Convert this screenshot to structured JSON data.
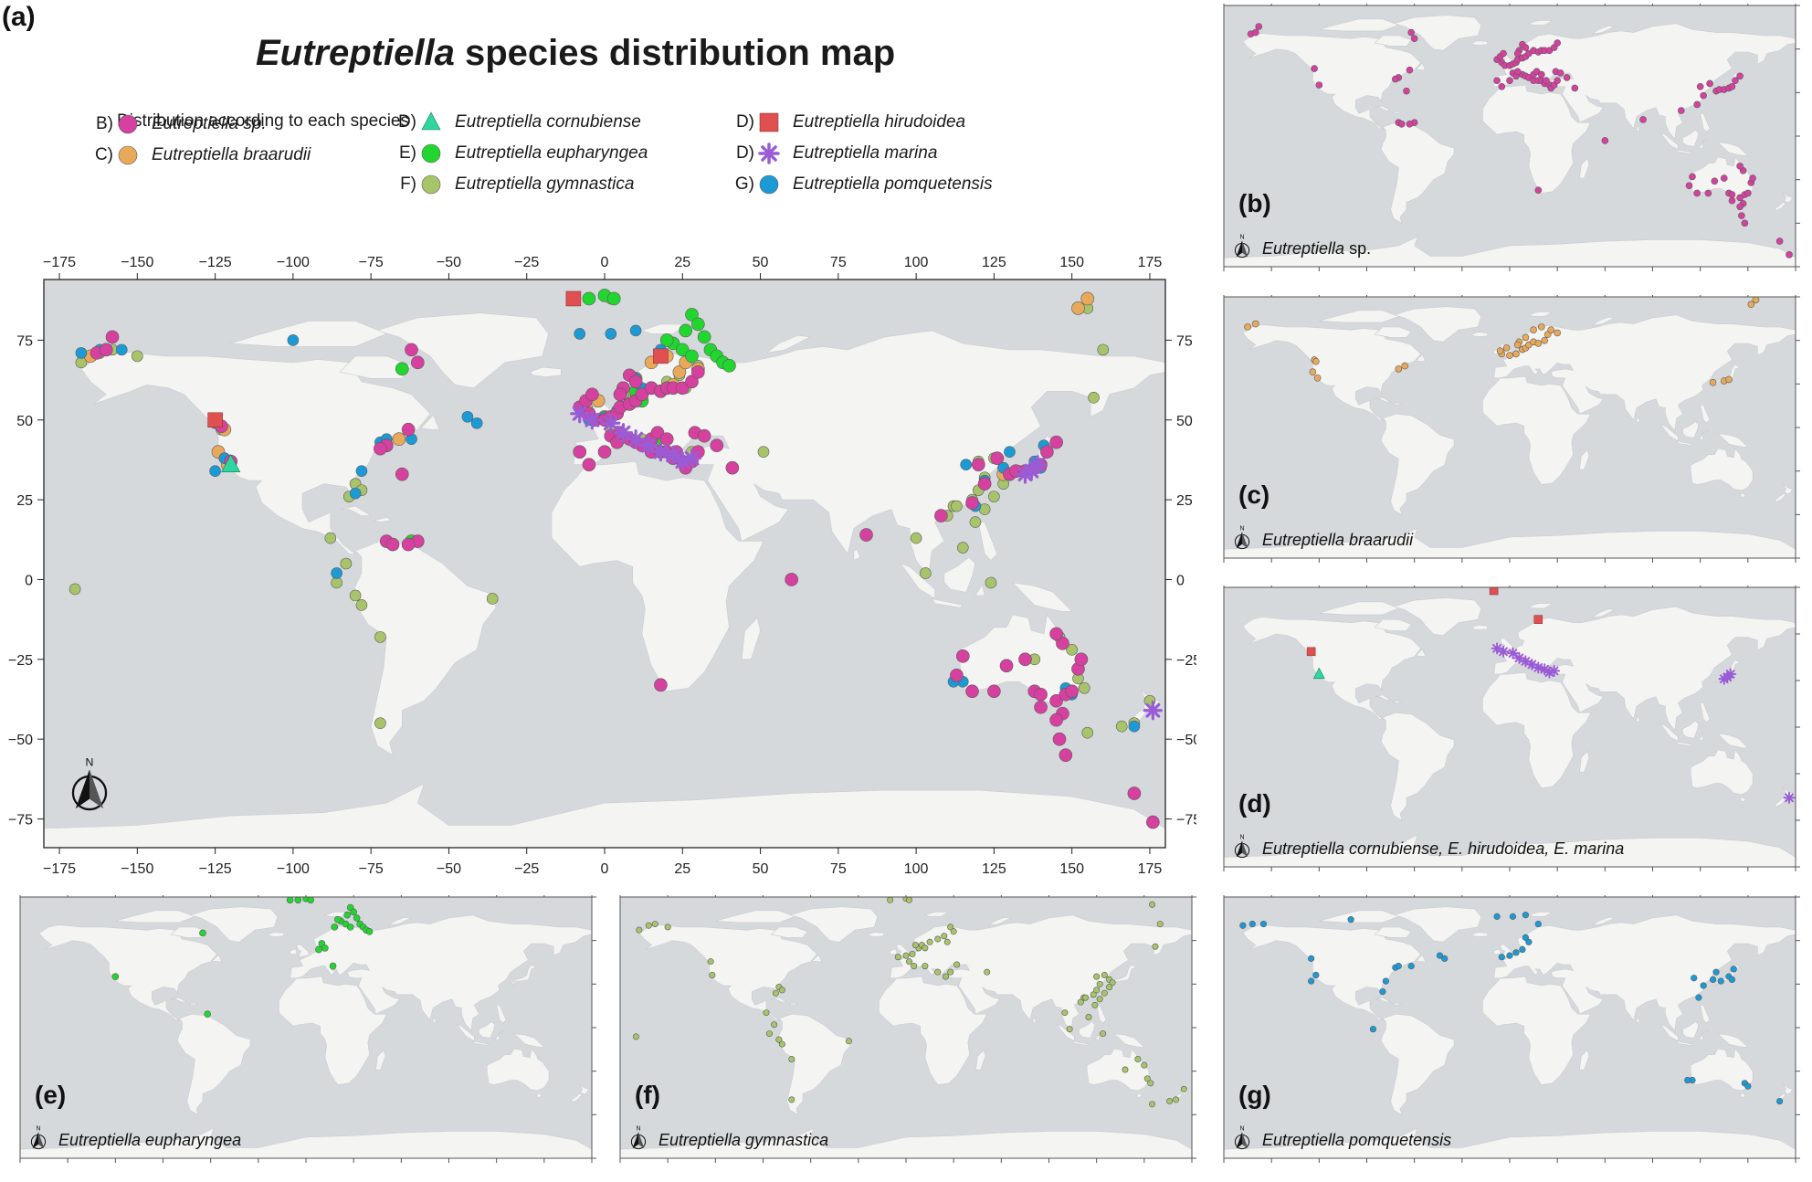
{
  "figure": {
    "label": "(a)",
    "title_italic": "Eutreptiella",
    "title_rest": " species distribution map"
  },
  "legend": {
    "heading": "Distribution according to each species",
    "items": [
      {
        "code": "B)",
        "name": "Eutreptiella sp.",
        "color": "#d6409f",
        "shape": "circle"
      },
      {
        "code": "C)",
        "name": "Eutreptiella braarudii",
        "color": "#e8a95b",
        "shape": "circle"
      },
      {
        "code": "D)",
        "name": "Eutreptiella cornubiense",
        "color": "#2fd6a0",
        "shape": "triangle"
      },
      {
        "code": "E)",
        "name": "Eutreptiella eupharyngea",
        "color": "#22d630",
        "shape": "circle"
      },
      {
        "code": "F)",
        "name": "Eutreptiella gymnastica",
        "color": "#a8c46a",
        "shape": "circle"
      },
      {
        "code": "D)",
        "name": "Eutreptiella hirudoidea",
        "color": "#e05050",
        "shape": "square"
      },
      {
        "code": "D)",
        "name": "Eutreptiella marina",
        "color": "#9a5cd6",
        "shape": "asterisk"
      },
      {
        "code": "G)",
        "name": "Eutreptiella pomquetensis",
        "color": "#1c9ad6",
        "shape": "circle"
      }
    ]
  },
  "map_a": {
    "lon_ticks": [
      "−175",
      "−150",
      "−125",
      "−100",
      "−75",
      "−50",
      "−25",
      "0",
      "25",
      "50",
      "75",
      "100",
      "125",
      "150",
      "175"
    ],
    "lat_ticks": [
      "75",
      "50",
      "25",
      "0",
      "−25",
      "−50",
      "−75"
    ],
    "colors": {
      "ocean": "#d5d9dc",
      "land": "#f4f4f2",
      "frame": "#444444"
    }
  },
  "small_panels": [
    {
      "id": "b",
      "letter": "(b)",
      "caption": "",
      "caption_italic": "Eutreptiella",
      "caption_plain": " sp."
    },
    {
      "id": "c",
      "letter": "(c)",
      "caption_italic": "Eutreptiella braarudii",
      "caption_plain": ""
    },
    {
      "id": "d",
      "letter": "(d)",
      "caption_italic": "Eutreptiella cornubiense, E. hirudoidea, E. marina",
      "caption_plain": ""
    },
    {
      "id": "e",
      "letter": "(e)",
      "caption_italic": "Eutreptiella eupharyngea",
      "caption_plain": ""
    },
    {
      "id": "f",
      "letter": "(f)",
      "caption_italic": "Eutreptiella gymnastica",
      "caption_plain": ""
    },
    {
      "id": "g",
      "letter": "(g)",
      "caption_italic": "Eutreptiella pomquetensis",
      "caption_plain": ""
    }
  ],
  "north_label": "N",
  "occurrences": {
    "sp": [
      [
        -163,
        71
      ],
      [
        -160,
        72
      ],
      [
        -158,
        76
      ],
      [
        -123,
        48
      ],
      [
        -120,
        37
      ],
      [
        -70,
        42
      ],
      [
        -72,
        41
      ],
      [
        -65,
        33
      ],
      [
        -60,
        12
      ],
      [
        -63,
        11
      ],
      [
        -70,
        12
      ],
      [
        -68,
        11
      ],
      [
        -60,
        68
      ],
      [
        -62,
        72
      ],
      [
        -5,
        52
      ],
      [
        -3,
        50
      ],
      [
        0,
        50
      ],
      [
        2,
        51
      ],
      [
        4,
        52
      ],
      [
        5,
        54
      ],
      [
        8,
        55
      ],
      [
        10,
        56
      ],
      [
        12,
        58
      ],
      [
        15,
        60
      ],
      [
        18,
        59
      ],
      [
        20,
        60
      ],
      [
        22,
        60
      ],
      [
        25,
        60
      ],
      [
        28,
        62
      ],
      [
        30,
        65
      ],
      [
        8,
        64
      ],
      [
        10,
        62
      ],
      [
        6,
        60
      ],
      [
        5,
        58
      ],
      [
        -8,
        54
      ],
      [
        -6,
        56
      ],
      [
        -4,
        58
      ],
      [
        2,
        45
      ],
      [
        4,
        43
      ],
      [
        8,
        44
      ],
      [
        10,
        43
      ],
      [
        12,
        42
      ],
      [
        15,
        40
      ],
      [
        18,
        40
      ],
      [
        20,
        40
      ],
      [
        22,
        38
      ],
      [
        25,
        37
      ],
      [
        26,
        35
      ],
      [
        28,
        37
      ],
      [
        30,
        40
      ],
      [
        0,
        40
      ],
      [
        -5,
        36
      ],
      [
        -8,
        40
      ],
      [
        5,
        46
      ],
      [
        15,
        44
      ],
      [
        17,
        46
      ],
      [
        20,
        44
      ],
      [
        23,
        40
      ],
      [
        29,
        46
      ],
      [
        32,
        45
      ],
      [
        36,
        42
      ],
      [
        41,
        35
      ],
      [
        84,
        14
      ],
      [
        60,
        0
      ],
      [
        18,
        -33
      ],
      [
        115,
        -24
      ],
      [
        113,
        -30
      ],
      [
        118,
        -35
      ],
      [
        125,
        -35
      ],
      [
        129,
        -27
      ],
      [
        135,
        -25
      ],
      [
        138,
        -35
      ],
      [
        140,
        -36
      ],
      [
        145,
        -38
      ],
      [
        148,
        -36
      ],
      [
        150,
        -35
      ],
      [
        152,
        -28
      ],
      [
        153,
        -25
      ],
      [
        147,
        -20
      ],
      [
        145,
        -17
      ],
      [
        140,
        -40
      ],
      [
        147,
        -42
      ],
      [
        145,
        -44
      ],
      [
        146,
        -50
      ],
      [
        148,
        -55
      ],
      [
        170,
        -67
      ],
      [
        176,
        -76
      ],
      [
        130,
        33
      ],
      [
        132,
        34
      ],
      [
        135,
        34
      ],
      [
        138,
        35
      ],
      [
        140,
        36
      ],
      [
        142,
        40
      ],
      [
        126,
        38
      ],
      [
        120,
        36
      ],
      [
        122,
        30
      ],
      [
        118,
        24
      ],
      [
        145,
        43
      ],
      [
        108,
        20
      ],
      [
        -63,
        47
      ]
    ],
    "braarudii": [
      [
        -165,
        70
      ],
      [
        -160,
        72
      ],
      [
        -123,
        48
      ],
      [
        -122,
        47
      ],
      [
        -124,
        40
      ],
      [
        -121,
        36
      ],
      [
        -70,
        42
      ],
      [
        -66,
        44
      ],
      [
        -5,
        52
      ],
      [
        0,
        51
      ],
      [
        4,
        52
      ],
      [
        8,
        55
      ],
      [
        10,
        56
      ],
      [
        12,
        58
      ],
      [
        15,
        60
      ],
      [
        18,
        59
      ],
      [
        22,
        61
      ],
      [
        24,
        65
      ],
      [
        26,
        68
      ],
      [
        30,
        66
      ],
      [
        6,
        60
      ],
      [
        5,
        58
      ],
      [
        -2,
        56
      ],
      [
        -6,
        54
      ],
      [
        10,
        63
      ],
      [
        15,
        68
      ],
      [
        20,
        70
      ],
      [
        152,
        85
      ],
      [
        155,
        88
      ],
      [
        128,
        33
      ],
      [
        135,
        34
      ],
      [
        138,
        35
      ]
    ],
    "cornubiense": [
      [
        -120,
        36
      ]
    ],
    "eupharyngea": [
      [
        -10,
        88
      ],
      [
        -5,
        88
      ],
      [
        0,
        89
      ],
      [
        3,
        88
      ],
      [
        28,
        83
      ],
      [
        30,
        80
      ],
      [
        26,
        78
      ],
      [
        32,
        76
      ],
      [
        34,
        72
      ],
      [
        36,
        70
      ],
      [
        22,
        74
      ],
      [
        20,
        75
      ],
      [
        18,
        70
      ],
      [
        25,
        72
      ],
      [
        28,
        70
      ],
      [
        38,
        68
      ],
      [
        40,
        67
      ],
      [
        10,
        59
      ],
      [
        12,
        56
      ],
      [
        8,
        55
      ],
      [
        -65,
        66
      ],
      [
        -62,
        12
      ],
      [
        -120,
        37
      ],
      [
        17,
        44
      ]
    ],
    "gymnastica": [
      [
        -168,
        68
      ],
      [
        -162,
        71
      ],
      [
        -158,
        72
      ],
      [
        -150,
        70
      ],
      [
        -123,
        47
      ],
      [
        -122,
        38
      ],
      [
        -80,
        30
      ],
      [
        -78,
        28
      ],
      [
        -82,
        26
      ],
      [
        -80,
        -5
      ],
      [
        -78,
        -8
      ],
      [
        -72,
        -18
      ],
      [
        -72,
        -45
      ],
      [
        -88,
        13
      ],
      [
        -86,
        -1
      ],
      [
        -83,
        5
      ],
      [
        -36,
        -6
      ],
      [
        -170,
        -3
      ],
      [
        -10,
        88
      ],
      [
        0,
        89
      ],
      [
        2,
        88
      ],
      [
        8,
        56
      ],
      [
        10,
        58
      ],
      [
        12,
        56
      ],
      [
        15,
        60
      ],
      [
        20,
        62
      ],
      [
        24,
        64
      ],
      [
        26,
        60
      ],
      [
        28,
        70
      ],
      [
        30,
        67
      ],
      [
        6,
        58
      ],
      [
        4,
        52
      ],
      [
        0,
        51
      ],
      [
        -5,
        50
      ],
      [
        2,
        47
      ],
      [
        5,
        44
      ],
      [
        12,
        44
      ],
      [
        20,
        40
      ],
      [
        25,
        37
      ],
      [
        28,
        40
      ],
      [
        32,
        45
      ],
      [
        51,
        40
      ],
      [
        100,
        13
      ],
      [
        103,
        2
      ],
      [
        110,
        20
      ],
      [
        112,
        23
      ],
      [
        118,
        25
      ],
      [
        120,
        28
      ],
      [
        122,
        32
      ],
      [
        120,
        37
      ],
      [
        125,
        38
      ],
      [
        128,
        35
      ],
      [
        130,
        33
      ],
      [
        128,
        30
      ],
      [
        125,
        26
      ],
      [
        122,
        22
      ],
      [
        119,
        18
      ],
      [
        115,
        10
      ],
      [
        113,
        23
      ],
      [
        124,
        -1
      ],
      [
        138,
        -25
      ],
      [
        146,
        -18
      ],
      [
        150,
        -22
      ],
      [
        152,
        -31
      ],
      [
        154,
        -34
      ],
      [
        155,
        -48
      ],
      [
        157,
        57
      ],
      [
        155,
        85
      ],
      [
        160,
        72
      ],
      [
        166,
        -46
      ],
      [
        170,
        -45
      ],
      [
        175,
        -38
      ]
    ],
    "hirudoidea": [
      [
        -125,
        50
      ],
      [
        -10,
        88
      ],
      [
        18,
        70
      ]
    ],
    "marina": [
      [
        -4,
        50
      ],
      [
        -8,
        52
      ],
      [
        2,
        49
      ],
      [
        6,
        46
      ],
      [
        10,
        44
      ],
      [
        14,
        42
      ],
      [
        18,
        40
      ],
      [
        22,
        39
      ],
      [
        25,
        37
      ],
      [
        28,
        38
      ],
      [
        135,
        33
      ],
      [
        137,
        34
      ],
      [
        139,
        36
      ],
      [
        176,
        -41
      ]
    ],
    "pomquetensis": [
      [
        -168,
        71
      ],
      [
        -162,
        72
      ],
      [
        -155,
        72
      ],
      [
        -100,
        75
      ],
      [
        -125,
        49
      ],
      [
        -125,
        34
      ],
      [
        -122,
        38
      ],
      [
        -78,
        34
      ],
      [
        -80,
        27
      ],
      [
        -72,
        43
      ],
      [
        -70,
        44
      ],
      [
        -86,
        2
      ],
      [
        -44,
        51
      ],
      [
        -41,
        49
      ],
      [
        -62,
        44
      ],
      [
        -8,
        77
      ],
      [
        2,
        77
      ],
      [
        10,
        78
      ],
      [
        18,
        72
      ],
      [
        10,
        63
      ],
      [
        12,
        60
      ],
      [
        4,
        53
      ],
      [
        8,
        55
      ],
      [
        0,
        51
      ],
      [
        -5,
        50
      ],
      [
        115,
        -32
      ],
      [
        112,
        -32
      ],
      [
        148,
        -34
      ],
      [
        150,
        -36
      ],
      [
        170,
        -46
      ],
      [
        141,
        42
      ],
      [
        130,
        40
      ],
      [
        122,
        31
      ],
      [
        119,
        23
      ],
      [
        116,
        36
      ],
      [
        128,
        35
      ],
      [
        133,
        34
      ],
      [
        138,
        37
      ],
      [
        140,
        35
      ]
    ]
  }
}
